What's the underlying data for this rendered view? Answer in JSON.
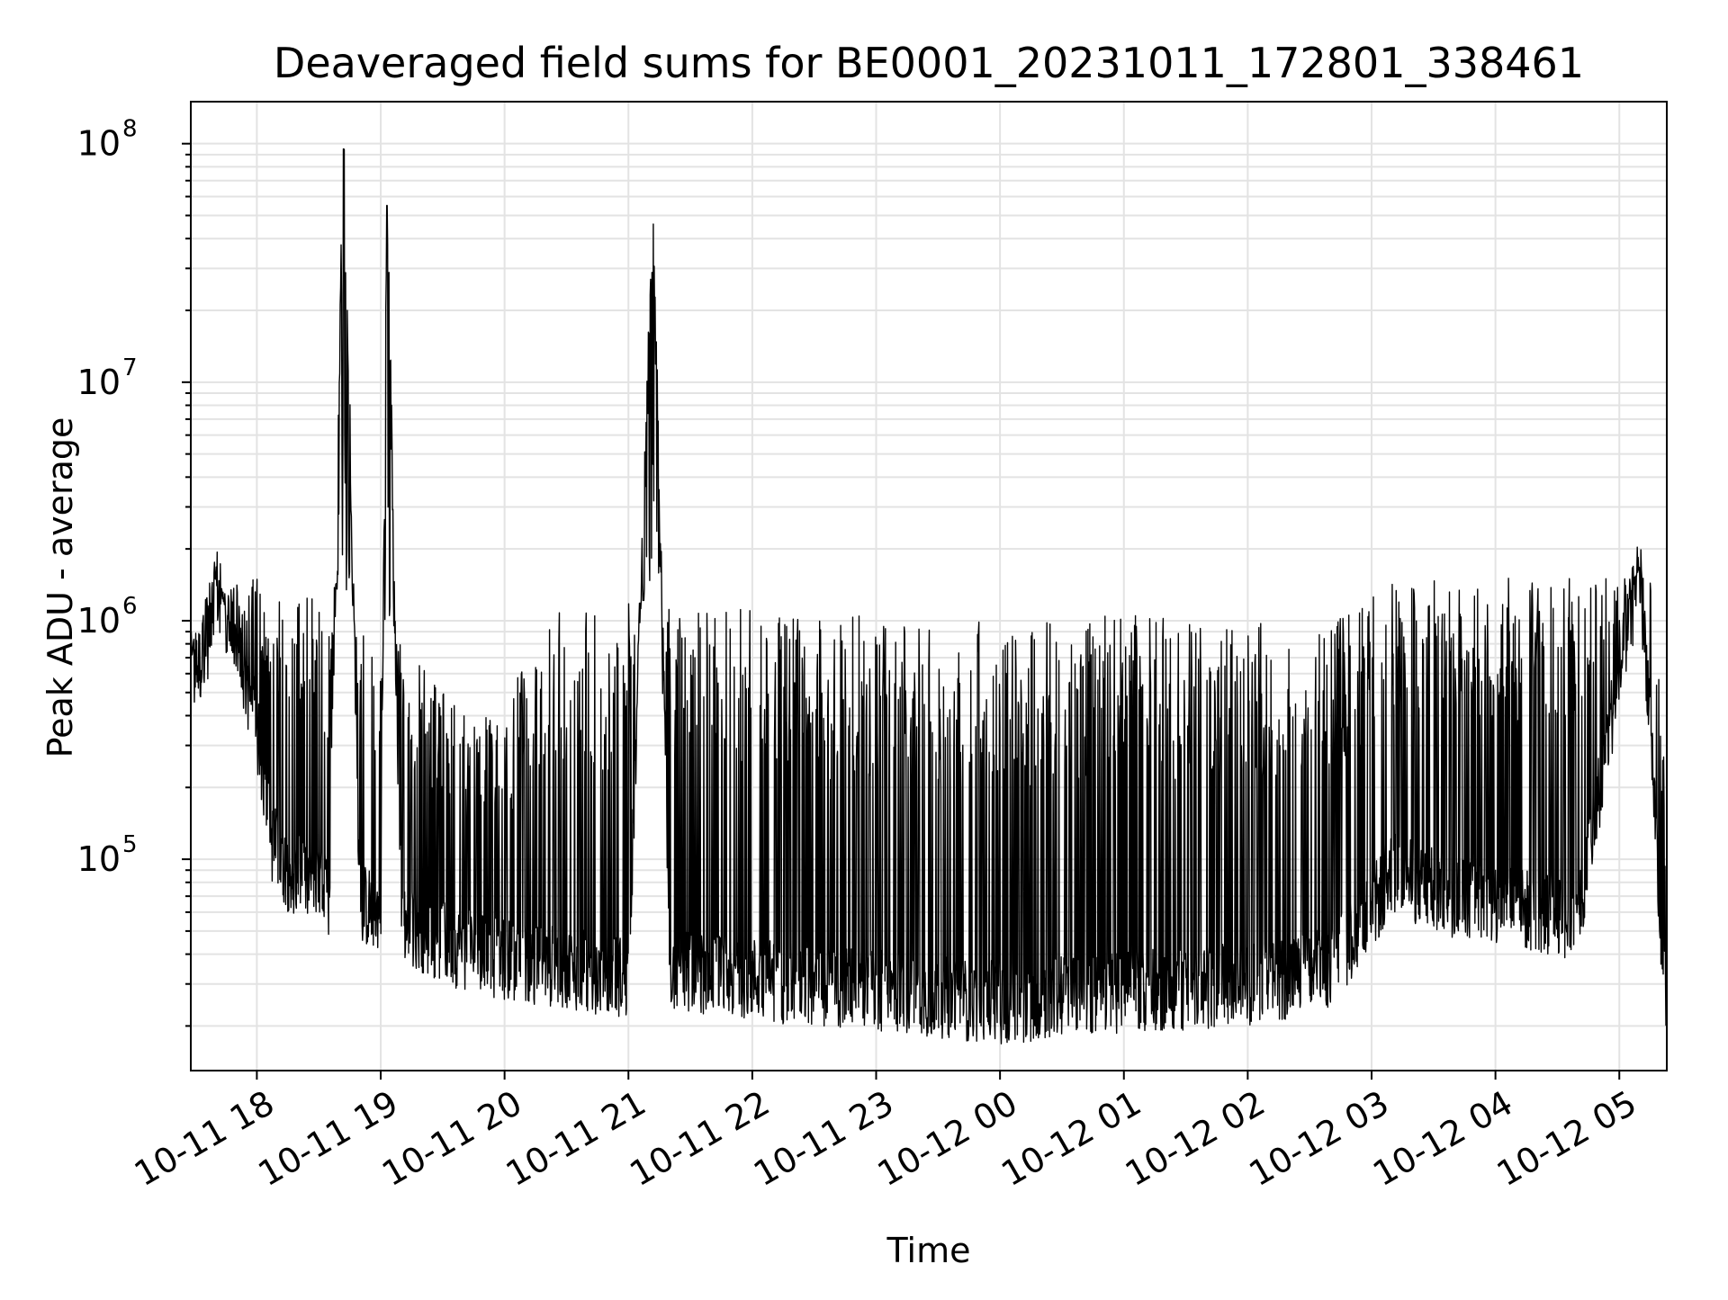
{
  "chart_data": {
    "type": "line",
    "title": "Deaveraged field sums for BE0001_20231011_172801_338461",
    "xlabel": "Time",
    "ylabel": "Peak ADU - average",
    "yscale": "log",
    "ylim": [
      13000,
      150000000
    ],
    "xlim": [
      "2023-10-11 17:28",
      "2023-10-12 05:23"
    ],
    "grid": true,
    "x_ticks": [
      "10-11 18",
      "10-11 19",
      "10-11 20",
      "10-11 21",
      "10-11 22",
      "10-11 23",
      "10-12 00",
      "10-12 01",
      "10-12 02",
      "10-12 03",
      "10-12 04",
      "10-12 05"
    ],
    "y_ticks": [
      {
        "base": "10",
        "exp": "5",
        "value": 100000
      },
      {
        "base": "10",
        "exp": "6",
        "value": 1000000
      },
      {
        "base": "10",
        "exp": "7",
        "value": 10000000
      },
      {
        "base": "10",
        "exp": "8",
        "value": 100000000
      }
    ],
    "line_color": "#000000",
    "series": [
      {
        "x": [
          "2023-10-11 17:28",
          "2023-10-11 17:35",
          "2023-10-11 17:40",
          "2023-10-11 17:45",
          "2023-10-11 17:52",
          "2023-10-11 18:00",
          "2023-10-11 18:07",
          "2023-10-11 18:15",
          "2023-10-11 18:25",
          "2023-10-11 18:35",
          "2023-10-11 18:42",
          "2023-10-11 18:50",
          "2023-10-11 19:00",
          "2023-10-11 19:03",
          "2023-10-11 19:10",
          "2023-10-11 19:20",
          "2023-10-11 19:30",
          "2023-10-11 19:40",
          "2023-10-11 20:00",
          "2023-10-11 20:20",
          "2023-10-11 20:40",
          "2023-10-11 21:00",
          "2023-10-11 21:12",
          "2023-10-11 21:20",
          "2023-10-11 21:40",
          "2023-10-11 22:00",
          "2023-10-11 22:20",
          "2023-10-11 22:40",
          "2023-10-11 23:00",
          "2023-10-11 23:20",
          "2023-10-11 23:40",
          "2023-10-12 00:00",
          "2023-10-12 00:20",
          "2023-10-12 00:40",
          "2023-10-12 01:00",
          "2023-10-12 01:20",
          "2023-10-12 01:40",
          "2023-10-12 02:00",
          "2023-10-12 02:20",
          "2023-10-12 02:40",
          "2023-10-12 03:00",
          "2023-10-12 03:10",
          "2023-10-12 03:20",
          "2023-10-12 03:40",
          "2023-10-12 04:00",
          "2023-10-12 04:20",
          "2023-10-12 04:40",
          "2023-10-12 04:55",
          "2023-10-12 05:05",
          "2023-10-12 05:10",
          "2023-10-12 05:15",
          "2023-10-12 05:20",
          "2023-10-12 05:23"
        ],
        "y": [
          600000,
          700000,
          1500000,
          900000,
          700000,
          350000,
          120000,
          90000,
          80000,
          70000,
          95000000,
          65000,
          60000,
          55000000,
          55000,
          50000,
          45000,
          42000,
          38000,
          36000,
          34000,
          32000,
          46000000,
          34000,
          33000,
          32000,
          30000,
          29000,
          28000,
          27000,
          26000,
          25000,
          26000,
          27000,
          28000,
          28000,
          29000,
          30000,
          32000,
          35000,
          60000,
          90000,
          80000,
          70000,
          65000,
          60000,
          55000,
          350000,
          1000000,
          1600000,
          400000,
          50000,
          20000
        ],
        "upper": [
          750000,
          1400000,
          1500000,
          1300000,
          1500000,
          1500000,
          1300000,
          1400000,
          1300000,
          1100000,
          1200000,
          1000000,
          900000,
          1000000,
          800000,
          700000,
          500000,
          400000,
          450000,
          1100000,
          1150000,
          1200000,
          1200000,
          1150000,
          1150000,
          1150000,
          1100000,
          1100000,
          1050000,
          1000000,
          1000000,
          1000000,
          1000000,
          1050000,
          1050000,
          1050000,
          1050000,
          1000000,
          1000000,
          1050000,
          1300000,
          1450000,
          1500000,
          1500000,
          1500000,
          1550000,
          1550000,
          1550000,
          1500000,
          1700000,
          1700000,
          1000000,
          75000
        ]
      }
    ]
  }
}
